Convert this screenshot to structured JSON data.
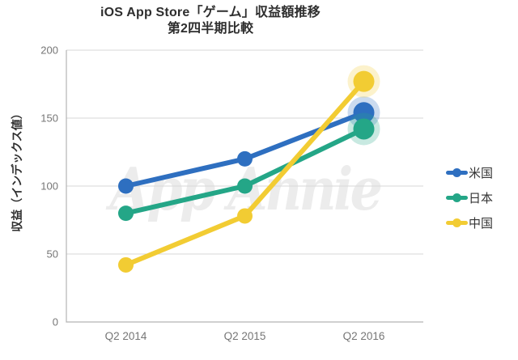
{
  "chart_data": {
    "type": "line",
    "title": "iOS App Store「ゲーム」収益額推移",
    "subtitle": "第2四半期比較",
    "ylabel": "収益（インデックス値）",
    "categories": [
      "Q2 2014",
      "Q2 2015",
      "Q2 2016"
    ],
    "series": [
      {
        "name": "米国",
        "color": "#2E6FC0",
        "values": [
          100,
          120,
          154
        ]
      },
      {
        "name": "日本",
        "color": "#24A687",
        "values": [
          80,
          100,
          142
        ]
      },
      {
        "name": "中国",
        "color": "#F2CC33",
        "values": [
          42,
          78,
          177
        ]
      }
    ],
    "ylim": [
      0,
      200
    ],
    "yticks": [
      0,
      50,
      100,
      150,
      200
    ],
    "grid": true,
    "legend_position": "right",
    "watermark": "App Annie",
    "colors": {
      "grid": "#d7d7d7",
      "axis": "#b3b3b3",
      "tick_label": "#767676",
      "title": "#2e2e2e",
      "legend_label": "#333333",
      "watermark": "#ececec",
      "halo_opacity": 0.25
    }
  }
}
